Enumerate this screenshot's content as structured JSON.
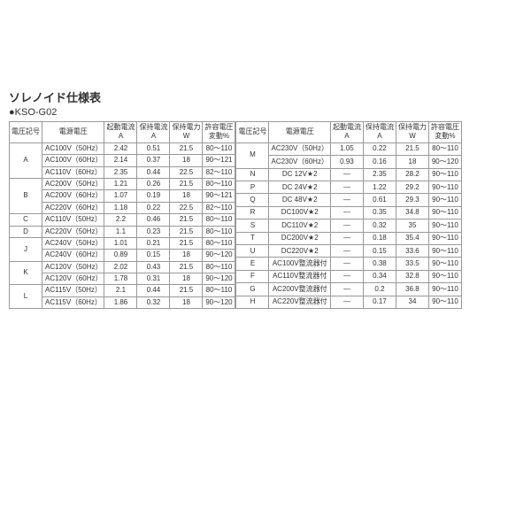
{
  "title": "ソレノイド仕様表",
  "subtitle": "●KSO-G02",
  "headers": {
    "code": "電圧記号",
    "voltage": "電源電圧",
    "start_current": "起動電流\nA",
    "hold_current": "保持電流\nA",
    "hold_power": "保持電力\nW",
    "tolerance": "許容電圧\n変動%"
  },
  "left_rows": [
    {
      "code": "A",
      "rowspan": 3,
      "voltage": "AC100V（50Hz）",
      "sc": "2.42",
      "hc": "0.51",
      "hp": "21.5",
      "tol": "80～110"
    },
    {
      "voltage": "AC100V（60Hz）",
      "sc": "2.14",
      "hc": "0.37",
      "hp": "18",
      "tol": "90～121"
    },
    {
      "voltage": "AC110V（60Hz）",
      "sc": "2.35",
      "hc": "0.44",
      "hp": "22.5",
      "tol": "82～110"
    },
    {
      "code": "B",
      "rowspan": 3,
      "voltage": "AC200V（50Hz）",
      "sc": "1.21",
      "hc": "0.26",
      "hp": "21.5",
      "tol": "80～110"
    },
    {
      "voltage": "AC200V（60Hz）",
      "sc": "1.07",
      "hc": "0.19",
      "hp": "18",
      "tol": "90～121"
    },
    {
      "voltage": "AC220V（60Hz）",
      "sc": "1.18",
      "hc": "0.22",
      "hp": "22.5",
      "tol": "82～110"
    },
    {
      "code": "C",
      "rowspan": 1,
      "voltage": "AC110V（50Hz）",
      "sc": "2.2",
      "hc": "0.46",
      "hp": "21.5",
      "tol": "80～110"
    },
    {
      "code": "D",
      "rowspan": 1,
      "voltage": "AC220V（50Hz）",
      "sc": "1.1",
      "hc": "0.23",
      "hp": "21.5",
      "tol": "80～110"
    },
    {
      "code": "J",
      "rowspan": 2,
      "voltage": "AC240V（50Hz）",
      "sc": "1.01",
      "hc": "0.21",
      "hp": "21.5",
      "tol": "80～110"
    },
    {
      "voltage": "AC240V（60Hz）",
      "sc": "0.89",
      "hc": "0.15",
      "hp": "18",
      "tol": "90～120"
    },
    {
      "code": "K",
      "rowspan": 2,
      "voltage": "AC120V（50Hz）",
      "sc": "2.02",
      "hc": "0.43",
      "hp": "21.5",
      "tol": "80～110"
    },
    {
      "voltage": "AC120V（60Hz）",
      "sc": "1.78",
      "hc": "0.31",
      "hp": "18",
      "tol": "90～120"
    },
    {
      "code": "L",
      "rowspan": 2,
      "voltage": "AC115V（50Hz）",
      "sc": "2.1",
      "hc": "0.44",
      "hp": "21.5",
      "tol": "80～110"
    },
    {
      "voltage": "AC115V（60Hz）",
      "sc": "1.86",
      "hc": "0.32",
      "hp": "18",
      "tol": "90～120"
    }
  ],
  "right_rows": [
    {
      "code": "M",
      "rowspan": 2,
      "voltage": "AC230V（50Hz）",
      "sc": "1.05",
      "hc": "0.22",
      "hp": "21.5",
      "tol": "80～110"
    },
    {
      "voltage": "AC230V（60Hz）",
      "sc": "0.93",
      "hc": "0.16",
      "hp": "18",
      "tol": "90～120"
    },
    {
      "code": "N",
      "rowspan": 1,
      "voltage": "DC 12V★2",
      "sc": "—",
      "hc": "2.35",
      "hp": "28.2",
      "tol": "90～110"
    },
    {
      "code": "P",
      "rowspan": 1,
      "voltage": "DC 24V★2",
      "sc": "—",
      "hc": "1.22",
      "hp": "29.2",
      "tol": "90～110"
    },
    {
      "code": "Q",
      "rowspan": 1,
      "voltage": "DC 48V★2",
      "sc": "—",
      "hc": "0.61",
      "hp": "29.3",
      "tol": "90～110"
    },
    {
      "code": "R",
      "rowspan": 1,
      "voltage": "DC100V★2",
      "sc": "—",
      "hc": "0.35",
      "hp": "34.8",
      "tol": "90～110"
    },
    {
      "code": "S",
      "rowspan": 1,
      "voltage": "DC110V★2",
      "sc": "—",
      "hc": "0.32",
      "hp": "35",
      "tol": "90～110"
    },
    {
      "code": "T",
      "rowspan": 1,
      "voltage": "DC200V★2",
      "sc": "—",
      "hc": "0.18",
      "hp": "35.4",
      "tol": "90～110"
    },
    {
      "code": "U",
      "rowspan": 1,
      "voltage": "DC220V★2",
      "sc": "—",
      "hc": "0.15",
      "hp": "33.6",
      "tol": "90～110"
    },
    {
      "code": "E",
      "rowspan": 1,
      "voltage": "AC100V整流器付",
      "sc": "—",
      "hc": "0.38",
      "hp": "33.5",
      "tol": "90～110"
    },
    {
      "code": "F",
      "rowspan": 1,
      "voltage": "AC110V整流器付",
      "sc": "—",
      "hc": "0.34",
      "hp": "32.8",
      "tol": "90～110"
    },
    {
      "code": "G",
      "rowspan": 1,
      "voltage": "AC200V整流器付",
      "sc": "—",
      "hc": "0.2",
      "hp": "36.8",
      "tol": "90～110"
    },
    {
      "code": "H",
      "rowspan": 1,
      "voltage": "AC220V整流器付",
      "sc": "—",
      "hc": "0.17",
      "hp": "34",
      "tol": "90～110"
    }
  ]
}
